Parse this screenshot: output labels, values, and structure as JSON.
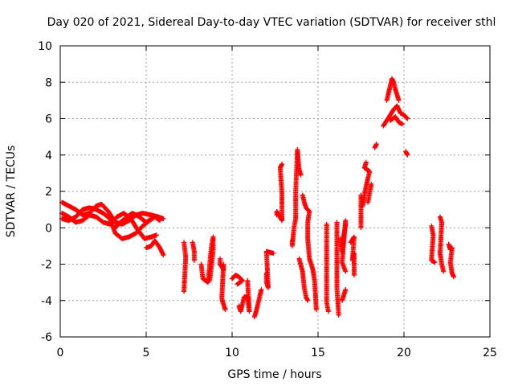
{
  "chart_data": {
    "type": "scatter",
    "title": "Day 020 of 2021, Sidereal Day-to-day VTEC variation (SDTVAR) for receiver sthl",
    "xlabel": "GPS time / hours",
    "ylabel": "SDTVAR / TECUs",
    "xlim": [
      0,
      25
    ],
    "ylim": [
      -6,
      10
    ],
    "xticks": [
      0,
      5,
      10,
      15,
      20,
      25
    ],
    "yticks": [
      -6,
      -4,
      -2,
      0,
      2,
      4,
      6,
      8,
      10
    ],
    "grid": true,
    "marker": "plus",
    "color": "#ff0000",
    "series": [
      {
        "name": "sthl",
        "segments": [
          [
            [
              0.1,
              1.4
            ],
            [
              0.5,
              1.2
            ],
            [
              0.9,
              1.0
            ],
            [
              1.3,
              0.7
            ],
            [
              1.7,
              0.8
            ],
            [
              2.1,
              1.2
            ],
            [
              2.4,
              1.3
            ],
            [
              2.8,
              0.9
            ],
            [
              3.2,
              0.3
            ],
            [
              3.6,
              0.2
            ],
            [
              4.0,
              0.4
            ],
            [
              4.4,
              0.7
            ],
            [
              4.8,
              0.8
            ],
            [
              5.3,
              0.7
            ],
            [
              5.7,
              0.6
            ],
            [
              6.0,
              0.5
            ]
          ],
          [
            [
              0.1,
              0.5
            ],
            [
              0.5,
              0.4
            ],
            [
              0.9,
              0.6
            ],
            [
              1.3,
              1.0
            ],
            [
              1.7,
              1.1
            ],
            [
              2.1,
              1.0
            ],
            [
              2.5,
              0.8
            ],
            [
              2.9,
              0.5
            ],
            [
              3.2,
              -0.3
            ],
            [
              3.6,
              -0.6
            ],
            [
              4.0,
              -0.5
            ],
            [
              4.4,
              -0.3
            ],
            [
              4.8,
              0.1
            ],
            [
              5.2,
              0.4
            ],
            [
              5.5,
              0.6
            ],
            [
              5.8,
              0.4
            ]
          ],
          [
            [
              0.1,
              0.8
            ],
            [
              0.5,
              0.6
            ],
            [
              0.9,
              0.3
            ],
            [
              1.3,
              0.4
            ],
            [
              1.7,
              0.7
            ],
            [
              2.1,
              0.6
            ],
            [
              2.5,
              0.3
            ],
            [
              2.9,
              0.2
            ],
            [
              3.3,
              0.6
            ],
            [
              3.7,
              0.8
            ],
            [
              4.1,
              0.5
            ],
            [
              4.5,
              -0.1
            ],
            [
              4.9,
              -0.6
            ],
            [
              5.3,
              -0.5
            ],
            [
              5.6,
              -0.4
            ]
          ],
          [
            [
              3.2,
              0.0
            ],
            [
              3.5,
              0.3
            ],
            [
              3.9,
              0.6
            ],
            [
              4.2,
              0.8
            ],
            [
              4.6,
              0.6
            ],
            [
              5.0,
              0.3
            ],
            [
              5.3,
              0.5
            ]
          ],
          [
            [
              5.0,
              -1.1
            ],
            [
              5.3,
              -1.0
            ],
            [
              5.5,
              -0.7
            ],
            [
              5.8,
              -1.1
            ],
            [
              6.0,
              -1.5
            ]
          ],
          [
            [
              7.2,
              -0.8
            ],
            [
              7.3,
              -1.6
            ],
            [
              7.2,
              -3.5
            ]
          ],
          [
            [
              7.7,
              -0.8
            ],
            [
              7.8,
              -1.3
            ],
            [
              7.8,
              -1.8
            ]
          ],
          [
            [
              8.2,
              -2.0
            ],
            [
              8.3,
              -2.8
            ],
            [
              8.6,
              -3.0
            ],
            [
              8.8,
              -1.0
            ],
            [
              8.9,
              -0.5
            ],
            [
              8.9,
              -1.2
            ],
            [
              8.7,
              -2.9
            ]
          ],
          [
            [
              9.3,
              -1.7
            ],
            [
              9.3,
              -2.0
            ],
            [
              9.5,
              -2.3
            ],
            [
              9.5,
              -2.0
            ],
            [
              9.4,
              -3.9
            ],
            [
              9.6,
              -4.5
            ]
          ],
          [
            [
              10.0,
              -2.8
            ],
            [
              10.2,
              -2.6
            ],
            [
              10.4,
              -2.7
            ],
            [
              10.6,
              -2.9
            ],
            [
              10.3,
              -3.1
            ]
          ],
          [
            [
              10.4,
              -4.3
            ],
            [
              10.5,
              -4.6
            ],
            [
              10.7,
              -3.8
            ],
            [
              10.9,
              -3.8
            ],
            [
              11.0,
              -4.6
            ],
            [
              10.9,
              -2.9
            ]
          ],
          [
            [
              11.3,
              -4.9
            ],
            [
              11.4,
              -4.6
            ],
            [
              11.5,
              -4.2
            ],
            [
              11.6,
              -3.8
            ],
            [
              11.7,
              -3.4
            ]
          ],
          [
            [
              12.0,
              -2.5
            ],
            [
              12.0,
              -3.0
            ],
            [
              12.1,
              -3.3
            ],
            [
              12.0,
              -1.3
            ],
            [
              12.4,
              -1.4
            ]
          ],
          [
            [
              12.6,
              0.7
            ],
            [
              12.6,
              0.9
            ],
            [
              12.9,
              0.4
            ],
            [
              12.9,
              0.6
            ],
            [
              12.9,
              1.9
            ],
            [
              12.8,
              3.3
            ],
            [
              12.9,
              3.5
            ]
          ],
          [
            [
              13.5,
              -0.7
            ],
            [
              13.5,
              -1.0
            ],
            [
              13.6,
              0.0
            ],
            [
              13.7,
              0.5
            ],
            [
              13.7,
              2.0
            ],
            [
              13.8,
              4.3
            ],
            [
              13.9,
              3.2
            ],
            [
              14.0,
              2.9
            ]
          ],
          [
            [
              13.9,
              -1.7
            ],
            [
              14.1,
              -2.4
            ],
            [
              14.2,
              -3.3
            ],
            [
              14.3,
              -3.8
            ],
            [
              14.4,
              -4.0
            ]
          ],
          [
            [
              14.1,
              1.8
            ],
            [
              14.2,
              1.4
            ],
            [
              14.3,
              1.1
            ],
            [
              14.4,
              1.0
            ],
            [
              14.5,
              0.9
            ],
            [
              14.4,
              0.3
            ],
            [
              14.4,
              -0.6
            ],
            [
              14.5,
              -1.7
            ],
            [
              14.7,
              -2.3
            ],
            [
              14.8,
              -2.9
            ],
            [
              14.9,
              -4.5
            ]
          ],
          [
            [
              15.5,
              0.2
            ],
            [
              15.5,
              -0.9
            ],
            [
              15.5,
              -4.1
            ],
            [
              15.6,
              -4.6
            ]
          ],
          [
            [
              16.1,
              0.3
            ],
            [
              16.1,
              -2.4
            ],
            [
              16.1,
              -3.3
            ],
            [
              16.2,
              -4.8
            ]
          ],
          [
            [
              16.3,
              -0.6
            ],
            [
              16.4,
              -1.3
            ],
            [
              16.5,
              -0.4
            ],
            [
              16.6,
              0.1
            ],
            [
              16.6,
              0.4
            ],
            [
              16.4,
              -1.9
            ],
            [
              16.6,
              -2.4
            ]
          ],
          [
            [
              16.4,
              -4.0
            ],
            [
              16.5,
              -3.7
            ],
            [
              16.6,
              -3.4
            ]
          ],
          [
            [
              16.9,
              -0.8
            ],
            [
              17.1,
              -0.5
            ],
            [
              17.0,
              -1.8
            ],
            [
              17.1,
              -1.4
            ],
            [
              17.1,
              -2.6
            ]
          ],
          [
            [
              17.5,
              0.0
            ],
            [
              17.5,
              1.0
            ],
            [
              17.5,
              1.8
            ]
          ],
          [
            [
              17.6,
              1.2
            ],
            [
              17.7,
              1.8
            ],
            [
              17.8,
              2.3
            ],
            [
              17.9,
              2.7
            ],
            [
              18.0,
              3.1
            ],
            [
              17.7,
              3.3
            ],
            [
              17.8,
              3.6
            ]
          ],
          [
            [
              17.9,
              1.4
            ],
            [
              18.0,
              1.9
            ],
            [
              18.1,
              2.4
            ]
          ],
          [
            [
              18.3,
              4.4
            ],
            [
              18.4,
              4.6
            ]
          ],
          [
            [
              18.8,
              5.6
            ],
            [
              19.0,
              5.9
            ],
            [
              19.2,
              6.2
            ],
            [
              19.4,
              6.5
            ],
            [
              19.6,
              6.7
            ],
            [
              19.8,
              6.3
            ],
            [
              20.0,
              6.2
            ],
            [
              20.2,
              6.0
            ]
          ],
          [
            [
              19.0,
              7.0
            ],
            [
              19.3,
              8.2
            ],
            [
              19.4,
              8.0
            ],
            [
              19.5,
              7.6
            ],
            [
              19.6,
              7.3
            ],
            [
              19.7,
              7.0
            ]
          ],
          [
            [
              19.2,
              5.9
            ],
            [
              19.5,
              6.1
            ],
            [
              19.7,
              5.8
            ],
            [
              19.9,
              5.7
            ]
          ],
          [
            [
              20.1,
              4.2
            ],
            [
              20.2,
              4.0
            ]
          ],
          [
            [
              21.6,
              0.1
            ],
            [
              21.7,
              -0.4
            ],
            [
              21.6,
              -1.8
            ],
            [
              21.8,
              -1.9
            ]
          ],
          [
            [
              22.1,
              0.6
            ],
            [
              22.2,
              0.3
            ],
            [
              22.1,
              -1.4
            ],
            [
              22.2,
              -2.0
            ],
            [
              22.3,
              -2.4
            ]
          ],
          [
            [
              22.6,
              -0.9
            ],
            [
              22.7,
              -1.2
            ],
            [
              22.8,
              -1.1
            ],
            [
              22.7,
              -1.9
            ],
            [
              22.8,
              -2.5
            ],
            [
              22.9,
              -2.7
            ]
          ]
        ]
      }
    ]
  }
}
